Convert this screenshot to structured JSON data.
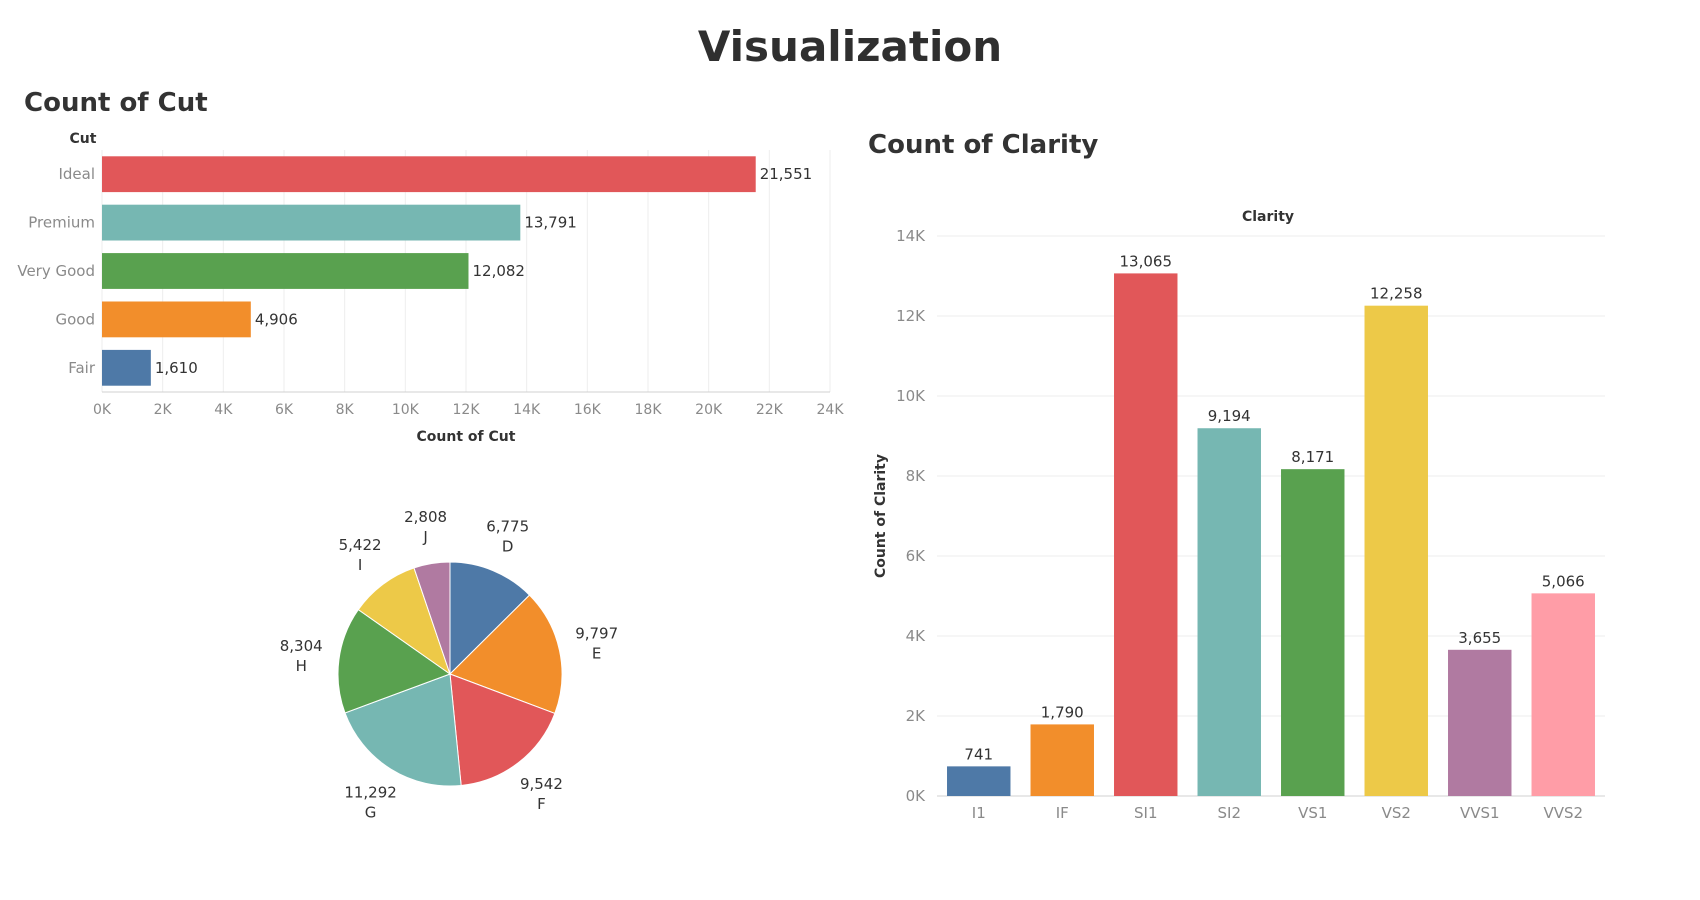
{
  "page": {
    "title": "Visualization"
  },
  "colors": {
    "blue": "#4e79a7",
    "orange": "#f28e2b",
    "red": "#e15759",
    "teal": "#76b7b2",
    "green": "#59a14f",
    "yellow": "#edc948",
    "purple": "#b07aa1",
    "pink": "#ff9da7",
    "grid": "#eeeeee",
    "axis_text": "#8a8a8a",
    "label_text": "#333333"
  },
  "chart_data": [
    {
      "id": "cut",
      "type": "bar",
      "orientation": "horizontal",
      "title": "Count of Cut",
      "ylabel": "Cut",
      "xlabel": "Count of Cut",
      "categories": [
        "Ideal",
        "Premium",
        "Very Good",
        "Good",
        "Fair"
      ],
      "values": [
        21551,
        13791,
        12082,
        4906,
        1610
      ],
      "data_labels": [
        "21,551",
        "13,791",
        "12,082",
        "4,906",
        "1,610"
      ],
      "bar_colors": [
        "#e15759",
        "#76b7b2",
        "#59a14f",
        "#f28e2b",
        "#4e79a7"
      ],
      "xlim": [
        0,
        24000
      ],
      "xticks": [
        0,
        2000,
        4000,
        6000,
        8000,
        10000,
        12000,
        14000,
        16000,
        18000,
        20000,
        22000,
        24000
      ],
      "xtick_labels": [
        "0K",
        "2K",
        "4K",
        "6K",
        "8K",
        "10K",
        "12K",
        "14K",
        "16K",
        "18K",
        "20K",
        "22K",
        "24K"
      ],
      "grid": true
    },
    {
      "id": "color",
      "type": "pie",
      "categories": [
        "D",
        "E",
        "F",
        "G",
        "H",
        "I",
        "J"
      ],
      "values": [
        6775,
        9797,
        9542,
        11292,
        8304,
        5422,
        2808
      ],
      "data_labels": [
        "6,775",
        "9,797",
        "9,542",
        "11,292",
        "8,304",
        "5,422",
        "2,808"
      ],
      "slice_colors": [
        "#4e79a7",
        "#f28e2b",
        "#e15759",
        "#76b7b2",
        "#59a14f",
        "#edc948",
        "#b07aa1"
      ]
    },
    {
      "id": "clarity",
      "type": "bar",
      "orientation": "vertical",
      "title": "Count of Clarity",
      "xlabel": "Clarity",
      "ylabel": "Count of Clarity",
      "categories": [
        "I1",
        "IF",
        "SI1",
        "SI2",
        "VS1",
        "VS2",
        "VVS1",
        "VVS2"
      ],
      "values": [
        741,
        1790,
        13065,
        9194,
        8171,
        12258,
        3655,
        5066
      ],
      "data_labels": [
        "741",
        "1,790",
        "13,065",
        "9,194",
        "8,171",
        "12,258",
        "3,655",
        "5,066"
      ],
      "bar_colors": [
        "#4e79a7",
        "#f28e2b",
        "#e15759",
        "#76b7b2",
        "#59a14f",
        "#edc948",
        "#b07aa1",
        "#ff9da7"
      ],
      "ylim": [
        0,
        14000
      ],
      "yticks": [
        0,
        2000,
        4000,
        6000,
        8000,
        10000,
        12000,
        14000
      ],
      "ytick_labels": [
        "0K",
        "2K",
        "4K",
        "6K",
        "8K",
        "10K",
        "12K",
        "14K"
      ],
      "grid": true
    }
  ]
}
